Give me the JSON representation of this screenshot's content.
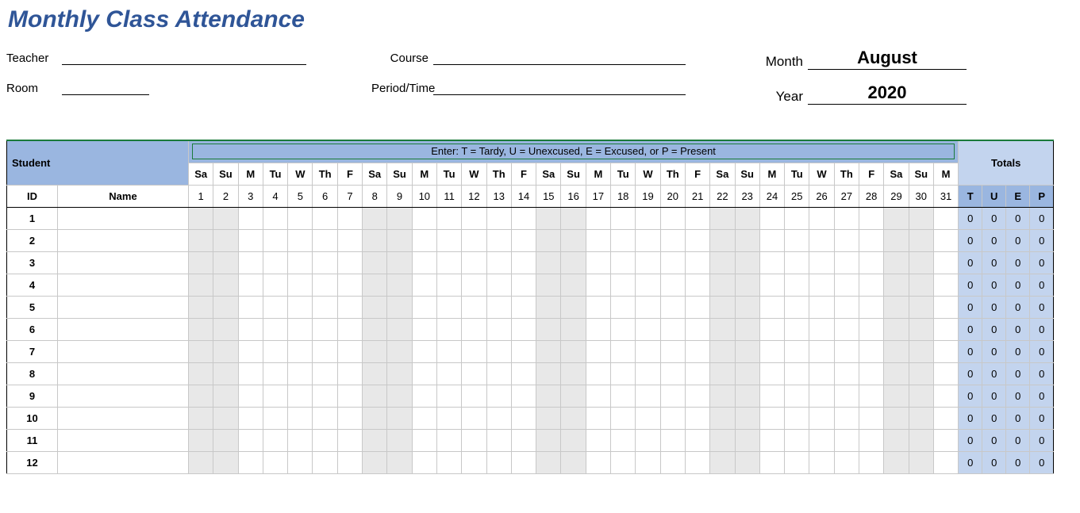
{
  "title": "Monthly Class Attendance",
  "fields": {
    "teacher_label": "Teacher",
    "room_label": "Room",
    "course_label": "Course",
    "period_label": "Period/Time",
    "month_label": "Month",
    "year_label": "Year",
    "month_value": "August",
    "year_value": "2020"
  },
  "legend": "Enter: T = Tardy,  U = Unexcused,  E = Excused,  or P = Present",
  "headers": {
    "student": "Student",
    "id": "ID",
    "name": "Name",
    "totals": "Totals"
  },
  "totals_columns": [
    "T",
    "U",
    "E",
    "P"
  ],
  "days_of_week": [
    "Sa",
    "Su",
    "M",
    "Tu",
    "W",
    "Th",
    "F",
    "Sa",
    "Su",
    "M",
    "Tu",
    "W",
    "Th",
    "F",
    "Sa",
    "Su",
    "M",
    "Tu",
    "W",
    "Th",
    "F",
    "Sa",
    "Su",
    "M",
    "Tu",
    "W",
    "Th",
    "F",
    "Sa",
    "Su",
    "M"
  ],
  "day_numbers": [
    1,
    2,
    3,
    4,
    5,
    6,
    7,
    8,
    9,
    10,
    11,
    12,
    13,
    14,
    15,
    16,
    17,
    18,
    19,
    20,
    21,
    22,
    23,
    24,
    25,
    26,
    27,
    28,
    29,
    30,
    31
  ],
  "weekend_flags": [
    true,
    true,
    false,
    false,
    false,
    false,
    false,
    true,
    true,
    false,
    false,
    false,
    false,
    false,
    true,
    true,
    false,
    false,
    false,
    false,
    false,
    true,
    true,
    false,
    false,
    false,
    false,
    false,
    true,
    true,
    false
  ],
  "num_rows": 12,
  "default_total": 0,
  "colors": {
    "title_color": "#2f5597",
    "header_blue": "#9ab6e0",
    "totals_blue": "#c3d4ee",
    "weekend_gray": "#e8e8e8",
    "grid_border": "#c8c8c8",
    "selection_green": "#1a7a3a"
  }
}
